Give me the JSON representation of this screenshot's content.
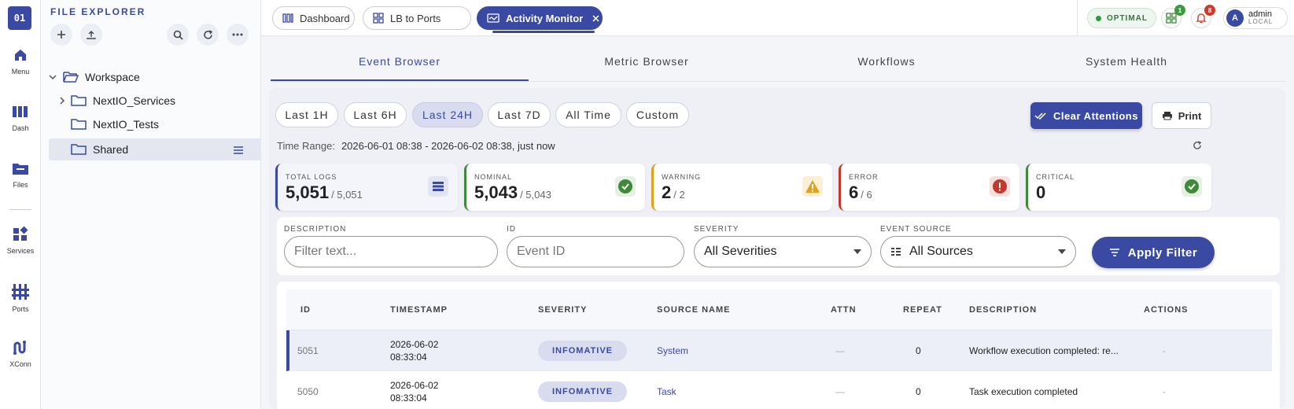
{
  "rail": {
    "logo": "01",
    "items": [
      {
        "label": "Menu",
        "icon": "home-icon"
      },
      {
        "label": "Dash",
        "icon": "dashboard-icon"
      },
      {
        "label": "Files",
        "icon": "folder-icon"
      },
      {
        "label": "Services",
        "icon": "services-icon"
      },
      {
        "label": "Ports",
        "icon": "ports-icon"
      },
      {
        "label": "XConn",
        "icon": "xconn-icon"
      }
    ]
  },
  "explorer": {
    "title": "FILE EXPLORER",
    "tree": [
      {
        "label": "Workspace"
      },
      {
        "label": "NextIO_Services"
      },
      {
        "label": "NextIO_Tests"
      },
      {
        "label": "Shared"
      }
    ]
  },
  "topbar": {
    "tabs": [
      {
        "label": "Dashboard"
      },
      {
        "label": "LB to Ports"
      },
      {
        "label": "Activity Monitor"
      }
    ],
    "status": "OPTIMAL",
    "services_badge": "1",
    "alerts_badge": "8",
    "user": {
      "initial": "A",
      "name": "admin",
      "role": "LOCAL"
    }
  },
  "subtabs": [
    "Event Browser",
    "Metric Browser",
    "Workflows",
    "System Health"
  ],
  "ranges": [
    "Last 1H",
    "Last 6H",
    "Last 24H",
    "Last 7D",
    "All Time",
    "Custom"
  ],
  "actions": {
    "clear": "Clear Attentions",
    "print": "Print"
  },
  "time_range": {
    "label": "Time Range:",
    "value": "2026-06-01 08:38 - 2026-06-02 08:38, just now"
  },
  "cards": [
    {
      "title": "TOTAL LOGS",
      "value": "5,051",
      "total": "/ 5,051",
      "color": "#3a4aa3"
    },
    {
      "title": "NOMINAL",
      "value": "5,043",
      "total": "/ 5,043",
      "color": "#3e8a3a"
    },
    {
      "title": "WARNING",
      "value": "2",
      "total": "/ 2",
      "color": "#e0a020"
    },
    {
      "title": "ERROR",
      "value": "6",
      "total": "/ 6",
      "color": "#c0392b"
    },
    {
      "title": "CRITICAL",
      "value": "0",
      "total": "",
      "color": "#3e8a3a"
    }
  ],
  "filters": {
    "description_label": "DESCRIPTION",
    "description_placeholder": "Filter text...",
    "id_label": "ID",
    "id_placeholder": "Event ID",
    "severity_label": "SEVERITY",
    "severity_value": "All Severities",
    "source_label": "EVENT SOURCE",
    "source_value": "All Sources",
    "apply": "Apply Filter"
  },
  "table": {
    "headers": [
      "ID",
      "TIMESTAMP",
      "SEVERITY",
      "SOURCE NAME",
      "ATTN",
      "REPEAT",
      "DESCRIPTION",
      "ACTIONS"
    ],
    "rows": [
      {
        "id": "5051",
        "date": "2026-06-02",
        "time": "08:33:04",
        "severity": "INFOMATIVE",
        "source": "System",
        "attn": "—",
        "repeat": "0",
        "description": "Workflow execution completed: re...",
        "actions": "-"
      },
      {
        "id": "5050",
        "date": "2026-06-02",
        "time": "08:33:04",
        "severity": "INFOMATIVE",
        "source": "Task",
        "attn": "—",
        "repeat": "0",
        "description": "Task execution completed",
        "actions": "-"
      }
    ]
  }
}
